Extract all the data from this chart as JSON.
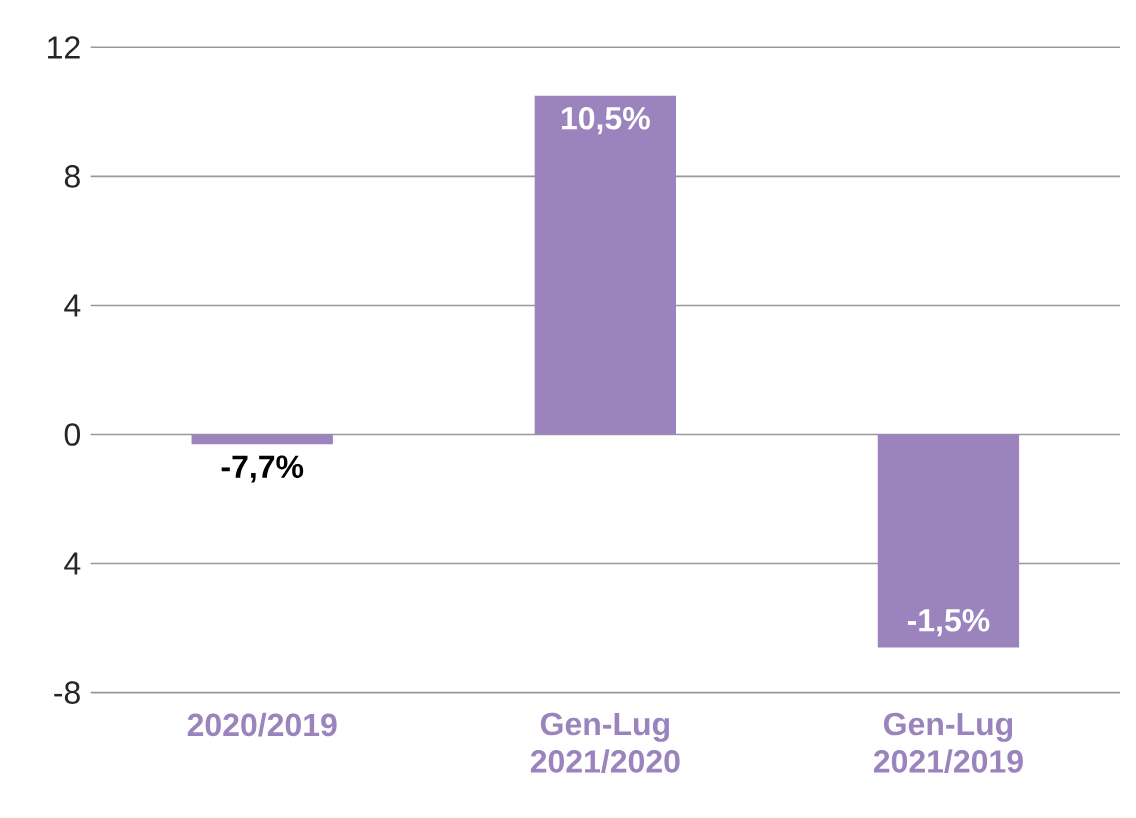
{
  "chart_data": {
    "type": "bar",
    "categories": [
      "2020/2019",
      "Gen-Lug 2021/2020",
      "Gen-Lug 2021/2019"
    ],
    "values": [
      -0.3,
      10.5,
      -6.6
    ],
    "annotations": [
      {
        "text": "-7,7%",
        "x": "2020/2019",
        "y": -0.3
      },
      {
        "text": "10,5%",
        "x": "Gen-Lug 2021/2020",
        "y": 10.5
      },
      {
        "text": "-1,5%",
        "x": "Gen-Lug 2021/2019",
        "y": -6.6
      }
    ],
    "color": "#9b84bd",
    "ylim": [
      -8,
      12
    ],
    "yticks": [
      -8,
      {
        "value": -4,
        "label": "4"
      },
      0,
      4,
      8,
      12
    ],
    "grid": "y"
  }
}
